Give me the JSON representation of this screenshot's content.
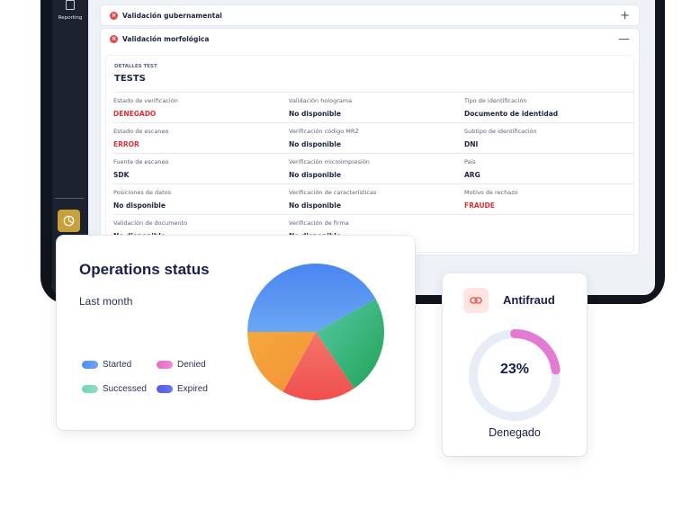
{
  "sidebar": {
    "reporting_label": "Reporting",
    "reporting_icon": "document-icon",
    "bottom_icon": "pie-chart-icon"
  },
  "accordions": [
    {
      "title": "Validación gubernamental",
      "status": "failed",
      "toggle": "+"
    },
    {
      "title": "Validación morfológica",
      "status": "failed",
      "toggle": "—"
    }
  ],
  "tests": {
    "section_label": "DETALLES TEST",
    "title": "TESTS",
    "fields": [
      {
        "label": "Estado de verificación",
        "value": "DENEGADO",
        "alert": true
      },
      {
        "label": "Validación holograma",
        "value": "No disponible",
        "alert": false
      },
      {
        "label": "Tipo de identificación",
        "value": "Documento de identidad",
        "alert": false
      },
      {
        "label": "Estado de escaneo",
        "value": "ERROR",
        "alert": true
      },
      {
        "label": "Verificación código MRZ",
        "value": "No disponible",
        "alert": false
      },
      {
        "label": "Subtipo de identificación",
        "value": "DNI",
        "alert": false
      },
      {
        "label": "Fuente de escaneo",
        "value": "SDK",
        "alert": false
      },
      {
        "label": "Verificación microimpresión",
        "value": "No disponible",
        "alert": false
      },
      {
        "label": "País",
        "value": "ARG",
        "alert": false
      },
      {
        "label": "Posiciones de datos",
        "value": "No disponible",
        "alert": false
      },
      {
        "label": "Verificación de características",
        "value": "No disponible",
        "alert": false
      },
      {
        "label": "Motivo de rechazo",
        "value": "FRAUDE",
        "alert": true
      },
      {
        "label": "Validación de documento",
        "value": "No disponible",
        "alert": false
      },
      {
        "label": "Verificación de firma",
        "value": "No disponible",
        "alert": false
      }
    ]
  },
  "operations": {
    "title": "Operations status",
    "period": "Last month",
    "legend": [
      {
        "label": "Started",
        "color": "#4f8ff2"
      },
      {
        "label": "Denied",
        "color": "#e86ac4"
      },
      {
        "label": "Successed",
        "color": "#6fd3b8"
      },
      {
        "label": "Expired",
        "color": "#4f5ce8"
      }
    ]
  },
  "antifraud": {
    "title": "Antifraud",
    "icon": "link-icon",
    "percent": 23,
    "percent_label": "23%",
    "status": "Denegado",
    "ring_color": "#e37bd4"
  }
}
